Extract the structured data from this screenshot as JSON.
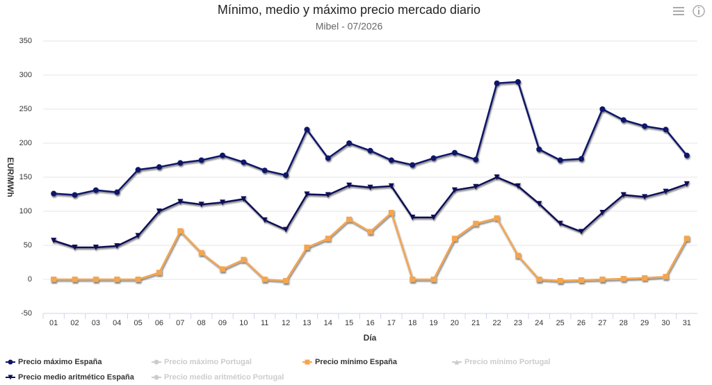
{
  "chart_data": {
    "type": "line",
    "title": "Mínimo, medio y máximo precio mercado diario",
    "subtitle": "Mibel - 07/2026",
    "y_label": "EUR/MWh",
    "x_label": "Día",
    "categories": [
      "01",
      "02",
      "03",
      "04",
      "05",
      "06",
      "07",
      "08",
      "09",
      "10",
      "11",
      "12",
      "13",
      "14",
      "15",
      "16",
      "17",
      "18",
      "19",
      "20",
      "21",
      "22",
      "23",
      "24",
      "25",
      "26",
      "27",
      "28",
      "29",
      "30",
      "31"
    ],
    "ylim": [
      -50,
      350
    ],
    "yticks": [
      -50,
      0,
      50,
      100,
      150,
      200,
      250,
      300,
      350
    ],
    "grid": true,
    "legend": "bottom",
    "series": [
      {
        "name": "Precio máximo España",
        "color": "#10136a",
        "marker": "circle",
        "visible": true,
        "values": [
          126,
          124,
          131,
          128,
          161,
          165,
          171,
          175,
          182,
          172,
          160,
          153,
          220,
          178,
          200,
          189,
          175,
          168,
          178,
          186,
          176,
          288,
          290,
          191,
          175,
          177,
          250,
          234,
          225,
          220,
          182
        ]
      },
      {
        "name": "Precio máximo Portugal",
        "marker": "circle",
        "visible": false
      },
      {
        "name": "Precio mínimo España",
        "color": "#f4a54f",
        "marker": "square",
        "visible": true,
        "values": [
          0,
          0,
          0,
          0,
          0,
          10,
          71,
          39,
          15,
          29,
          0,
          -2,
          47,
          60,
          88,
          70,
          98,
          0,
          0,
          60,
          82,
          90,
          35,
          0,
          -2,
          -1,
          0,
          1,
          2,
          4,
          60
        ]
      },
      {
        "name": "Precio mínimo Portugal",
        "marker": "triangle",
        "visible": false
      },
      {
        "name": "Precio medio aritmético España",
        "color": "#0e1158",
        "marker": "triangle-down",
        "visible": true,
        "values": [
          57,
          47,
          47,
          49,
          64,
          100,
          114,
          110,
          113,
          118,
          87,
          73,
          125,
          124,
          138,
          135,
          137,
          91,
          91,
          131,
          136,
          150,
          137,
          111,
          82,
          70,
          98,
          124,
          121,
          129,
          140
        ]
      },
      {
        "name": "Precio medio aritmético Portugal",
        "marker": "circle",
        "visible": false
      }
    ]
  }
}
